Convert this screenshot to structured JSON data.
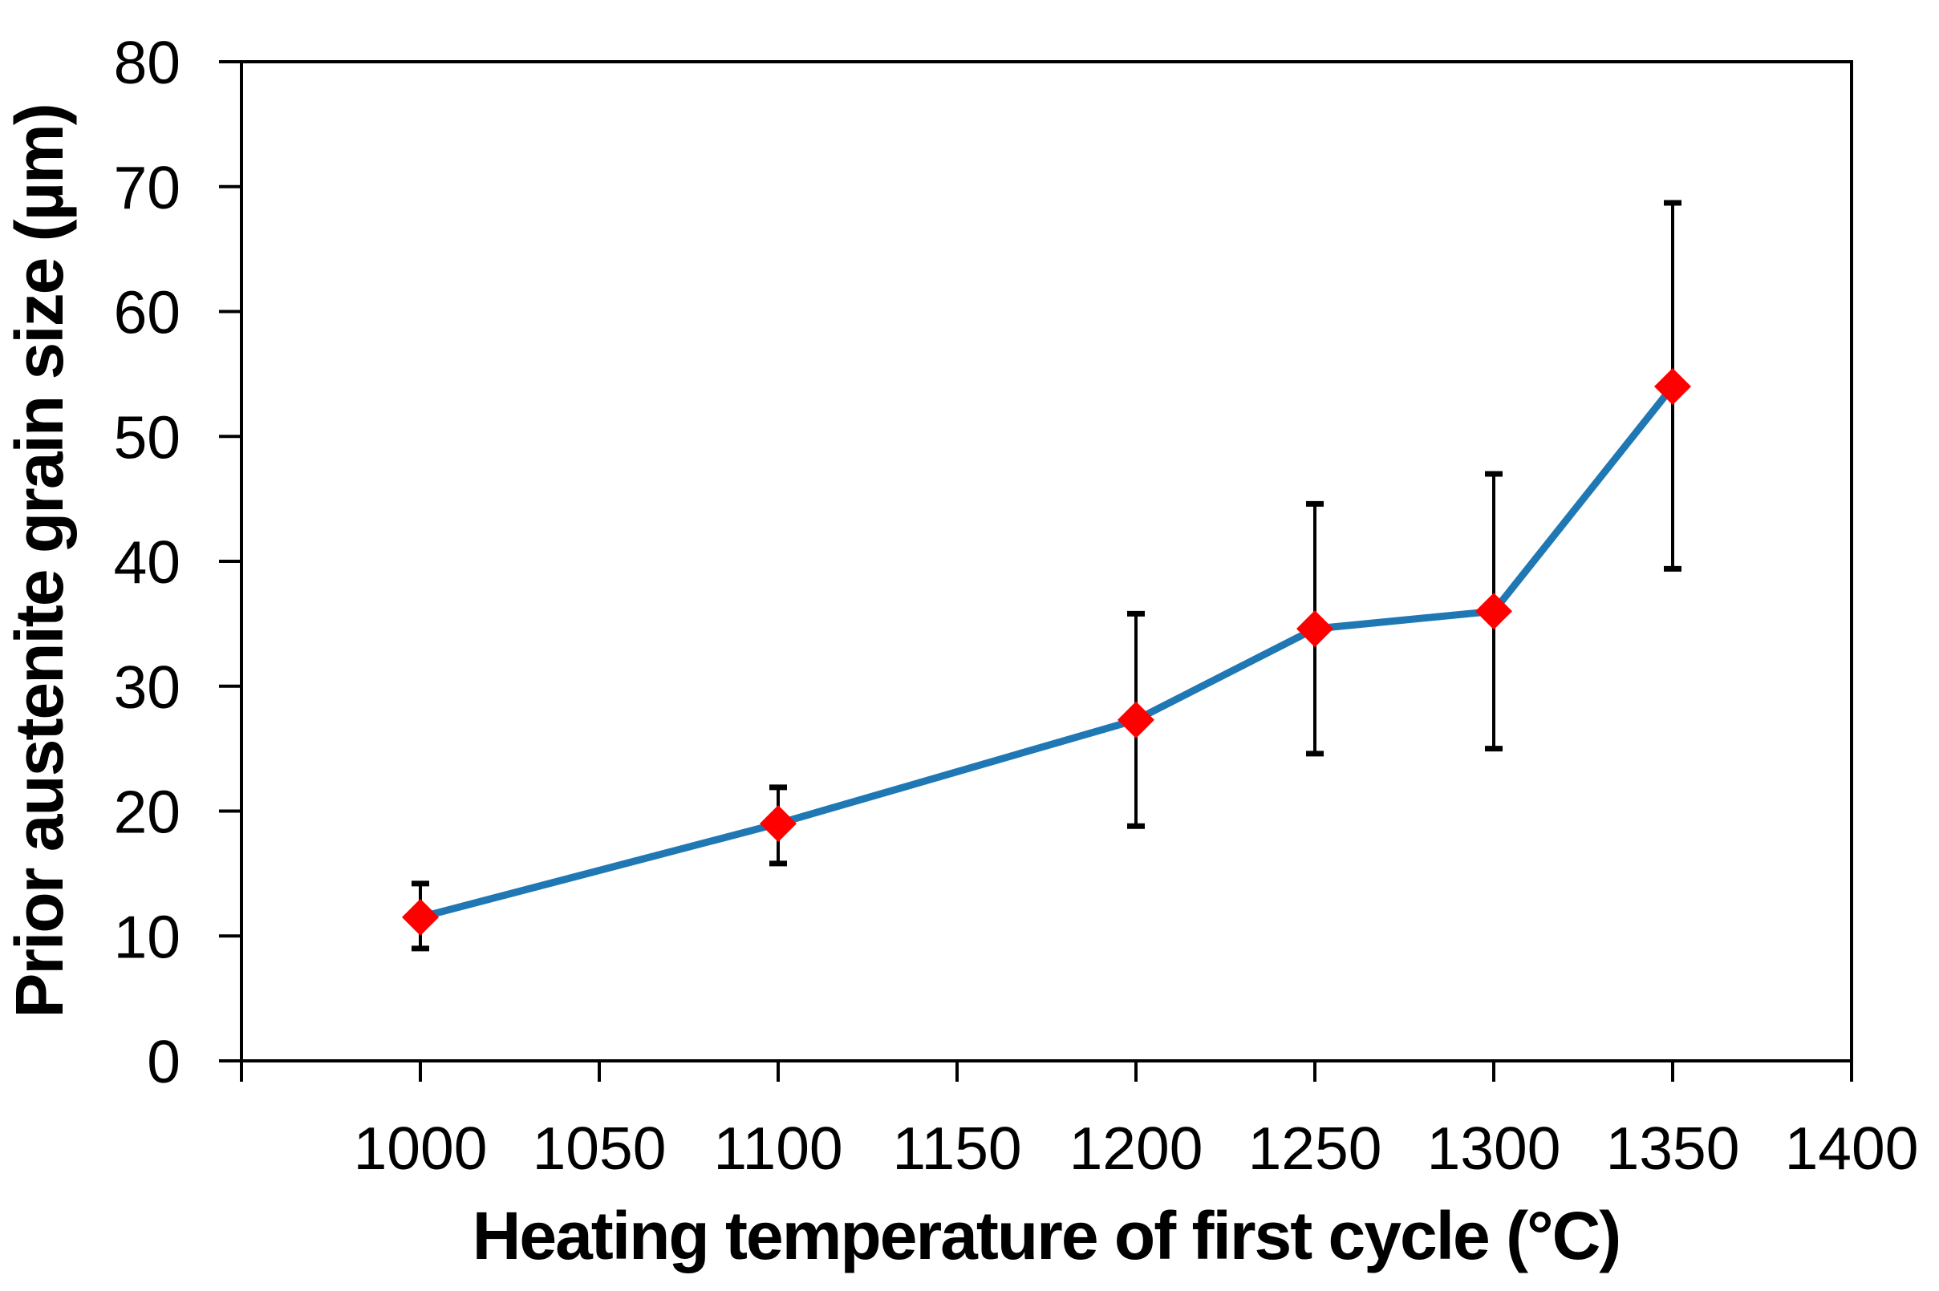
{
  "chart_data": {
    "type": "line",
    "title": "",
    "xlabel": "Heating temperature of first cycle (°C)",
    "ylabel": "Prior austenite grain size (µm)",
    "x": [
      1000,
      1100,
      1200,
      1250,
      1300,
      1350
    ],
    "series": [
      {
        "name": "Prior austenite grain size",
        "values": [
          11.5,
          19.0,
          27.3,
          34.6,
          36.0,
          54.0
        ],
        "error_lower_bound": [
          9.0,
          15.8,
          18.8,
          24.6,
          25.0,
          39.4
        ],
        "error_upper_bound": [
          14.2,
          21.9,
          35.8,
          44.6,
          47.0,
          68.7
        ]
      }
    ],
    "xlim": [
      950,
      1400
    ],
    "ylim": [
      0,
      80
    ],
    "x_ticks": [
      950,
      1000,
      1050,
      1100,
      1150,
      1200,
      1250,
      1300,
      1350,
      1400
    ],
    "x_tick_labels": [
      "1000",
      "1050",
      "1100",
      "1150",
      "1200",
      "1250",
      "1300",
      "1350",
      "1400"
    ],
    "y_ticks": [
      0,
      10,
      20,
      30,
      40,
      50,
      60,
      70,
      80
    ],
    "y_tick_labels": [
      "0",
      "10",
      "20",
      "30",
      "40",
      "50",
      "60",
      "70",
      "80"
    ],
    "grid": false,
    "legend": false,
    "marker": "diamond",
    "colors": {
      "line": "#1F78B4",
      "marker": "#FF0000",
      "error_bar": "#000000",
      "axis": "#000000",
      "background": "#FFFFFF"
    }
  }
}
